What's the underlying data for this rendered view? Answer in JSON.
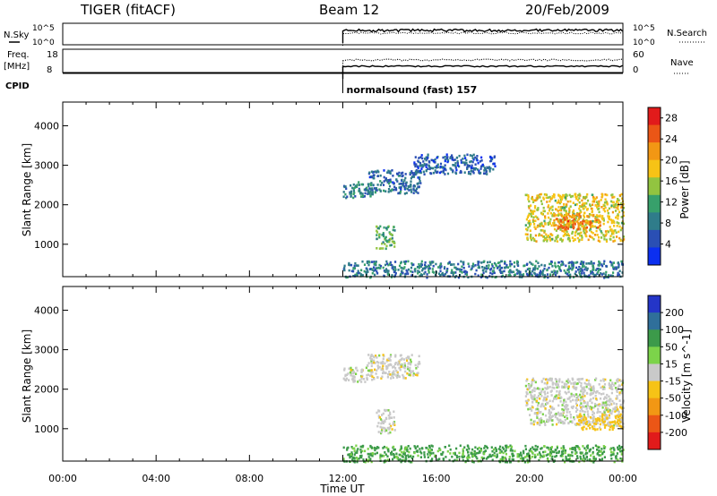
{
  "header": {
    "station": "TIGER (fitACF)",
    "beam": "Beam 12",
    "date": "20/Feb/2009"
  },
  "status_panels": {
    "nsky_label": "N.Sky",
    "nsky_ticks": [
      "10^5",
      "10^0"
    ],
    "nsearch_label": "N.Search",
    "nsearch_ticks": [
      "10^5",
      "10^0"
    ],
    "freq_label_top": "Freq.",
    "freq_label_bottom": "[MHz]",
    "freq_ticks": [
      "18",
      "8"
    ],
    "nave_label": "Nave",
    "nave_ticks": [
      "60",
      "0"
    ],
    "cpid_label": "CPID",
    "cpid_text": "normalsound (fast) 157",
    "data_start_hour": 12
  },
  "chart_data": [
    {
      "type": "heatmap",
      "name": "power",
      "ylabel": "Slant Range [km]",
      "ylim": [
        180,
        4600
      ],
      "yticks": [
        1000,
        2000,
        3000,
        4000
      ],
      "xlim_hours": [
        0,
        24
      ],
      "colorbar": {
        "label": "Power [dB]",
        "ticks": [
          4,
          8,
          12,
          16,
          20,
          24,
          28
        ],
        "range": [
          0,
          30
        ],
        "colors": [
          "#0b2ff0",
          "#2a4fb4",
          "#2f7c8a",
          "#37a06b",
          "#92c440",
          "#f6c316",
          "#f29714",
          "#eb5616",
          "#e11b1b"
        ]
      },
      "regions": [
        {
          "x": [
            12.0,
            13.3
          ],
          "y": [
            2200,
            2600
          ],
          "value": 9
        },
        {
          "x": [
            13.0,
            15.3
          ],
          "y": [
            2300,
            2900
          ],
          "value": 7
        },
        {
          "x": [
            13.4,
            14.2
          ],
          "y": [
            900,
            1500
          ],
          "value": 13
        },
        {
          "x": [
            12.0,
            24.0
          ],
          "y": [
            180,
            600
          ],
          "value": 8
        },
        {
          "x": [
            19.8,
            24.0
          ],
          "y": [
            1100,
            2300
          ],
          "value": 17
        },
        {
          "x": [
            21.0,
            23.0
          ],
          "y": [
            1400,
            1800
          ],
          "value": 23
        },
        {
          "x": [
            15.0,
            18.5
          ],
          "y": [
            2800,
            3300
          ],
          "value": 6
        }
      ]
    },
    {
      "type": "heatmap",
      "name": "velocity",
      "ylabel": "Slant Range [km]",
      "ylim": [
        180,
        4600
      ],
      "yticks": [
        1000,
        2000,
        3000,
        4000
      ],
      "xlim_hours": [
        0,
        24
      ],
      "xlabel": "Time UT",
      "xticks": [
        "00:00",
        "04:00",
        "08:00",
        "12:00",
        "16:00",
        "20:00",
        "00:00"
      ],
      "colorbar": {
        "label": "Velocity [m s^-1]",
        "ticks": [
          200,
          100,
          50,
          15,
          -15,
          -50,
          -100,
          -200
        ],
        "colors": [
          "#2435c8",
          "#2f6f9a",
          "#3c9a4a",
          "#7cd34a",
          "#c9c9c9",
          "#f6c316",
          "#f29714",
          "#eb5616",
          "#e11b1b"
        ]
      },
      "regions": [
        {
          "x": [
            12.0,
            13.3
          ],
          "y": [
            2200,
            2600
          ],
          "value": 0
        },
        {
          "x": [
            13.0,
            15.3
          ],
          "y": [
            2300,
            2900
          ],
          "value": 0
        },
        {
          "x": [
            13.4,
            14.2
          ],
          "y": [
            900,
            1500
          ],
          "value": 0
        },
        {
          "x": [
            12.0,
            24.0
          ],
          "y": [
            180,
            600
          ],
          "value": 40
        },
        {
          "x": [
            19.8,
            24.0
          ],
          "y": [
            1100,
            2300
          ],
          "value": 0
        },
        {
          "x": [
            22.0,
            24.0
          ],
          "y": [
            1000,
            1400
          ],
          "value": -30
        }
      ]
    }
  ]
}
